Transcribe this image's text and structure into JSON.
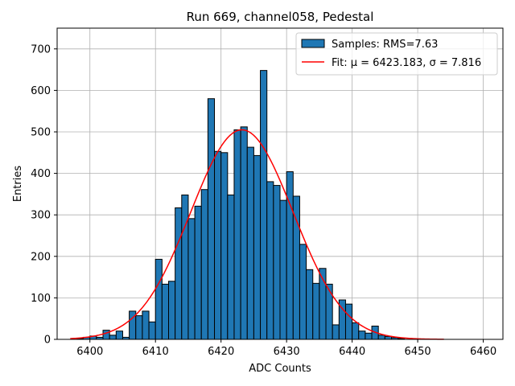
{
  "chart_data": {
    "type": "bar",
    "title": "Run 669, channel058, Pedestal",
    "xlabel": "ADC Counts",
    "ylabel": "Entries",
    "xlim": [
      6395,
      6463
    ],
    "ylim": [
      0,
      750
    ],
    "x_ticks": [
      6400,
      6410,
      6420,
      6430,
      6440,
      6450,
      6460
    ],
    "y_ticks": [
      0,
      100,
      200,
      300,
      400,
      500,
      600,
      700
    ],
    "grid": true,
    "legend_position": "top-right",
    "bin_width": 1,
    "colors": {
      "bars": "#1f77b4",
      "bar_edge": "#000000",
      "fit": "#ff0000"
    },
    "series": [
      {
        "name": "Samples: RMS=7.63",
        "kind": "histogram",
        "bin_starts": [
          6398,
          6399,
          6400,
          6401,
          6402,
          6403,
          6404,
          6405,
          6406,
          6407,
          6408,
          6409,
          6410,
          6411,
          6412,
          6413,
          6414,
          6415,
          6416,
          6417,
          6418,
          6419,
          6420,
          6421,
          6422,
          6423,
          6424,
          6425,
          6426,
          6427,
          6428,
          6429,
          6430,
          6431,
          6432,
          6433,
          6434,
          6435,
          6436,
          6437,
          6438,
          6439,
          6440,
          6441,
          6442,
          6443,
          6444,
          6445,
          6446,
          6447
        ],
        "values": [
          2,
          5,
          8,
          5,
          22,
          10,
          20,
          5,
          68,
          57,
          68,
          42,
          193,
          133,
          140,
          317,
          348,
          291,
          321,
          361,
          580,
          453,
          450,
          348,
          505,
          512,
          463,
          443,
          648,
          380,
          371,
          335,
          404,
          345,
          229,
          168,
          135,
          171,
          133,
          35,
          95,
          85,
          40,
          20,
          15,
          32,
          10,
          7,
          4,
          2
        ]
      },
      {
        "name": "Fit: μ = 6423.183, σ = 7.816",
        "kind": "gaussian_fit",
        "mu": 6423.183,
        "sigma": 7.816,
        "amplitude": 505,
        "x_range": [
          6397,
          6454
        ]
      }
    ]
  }
}
